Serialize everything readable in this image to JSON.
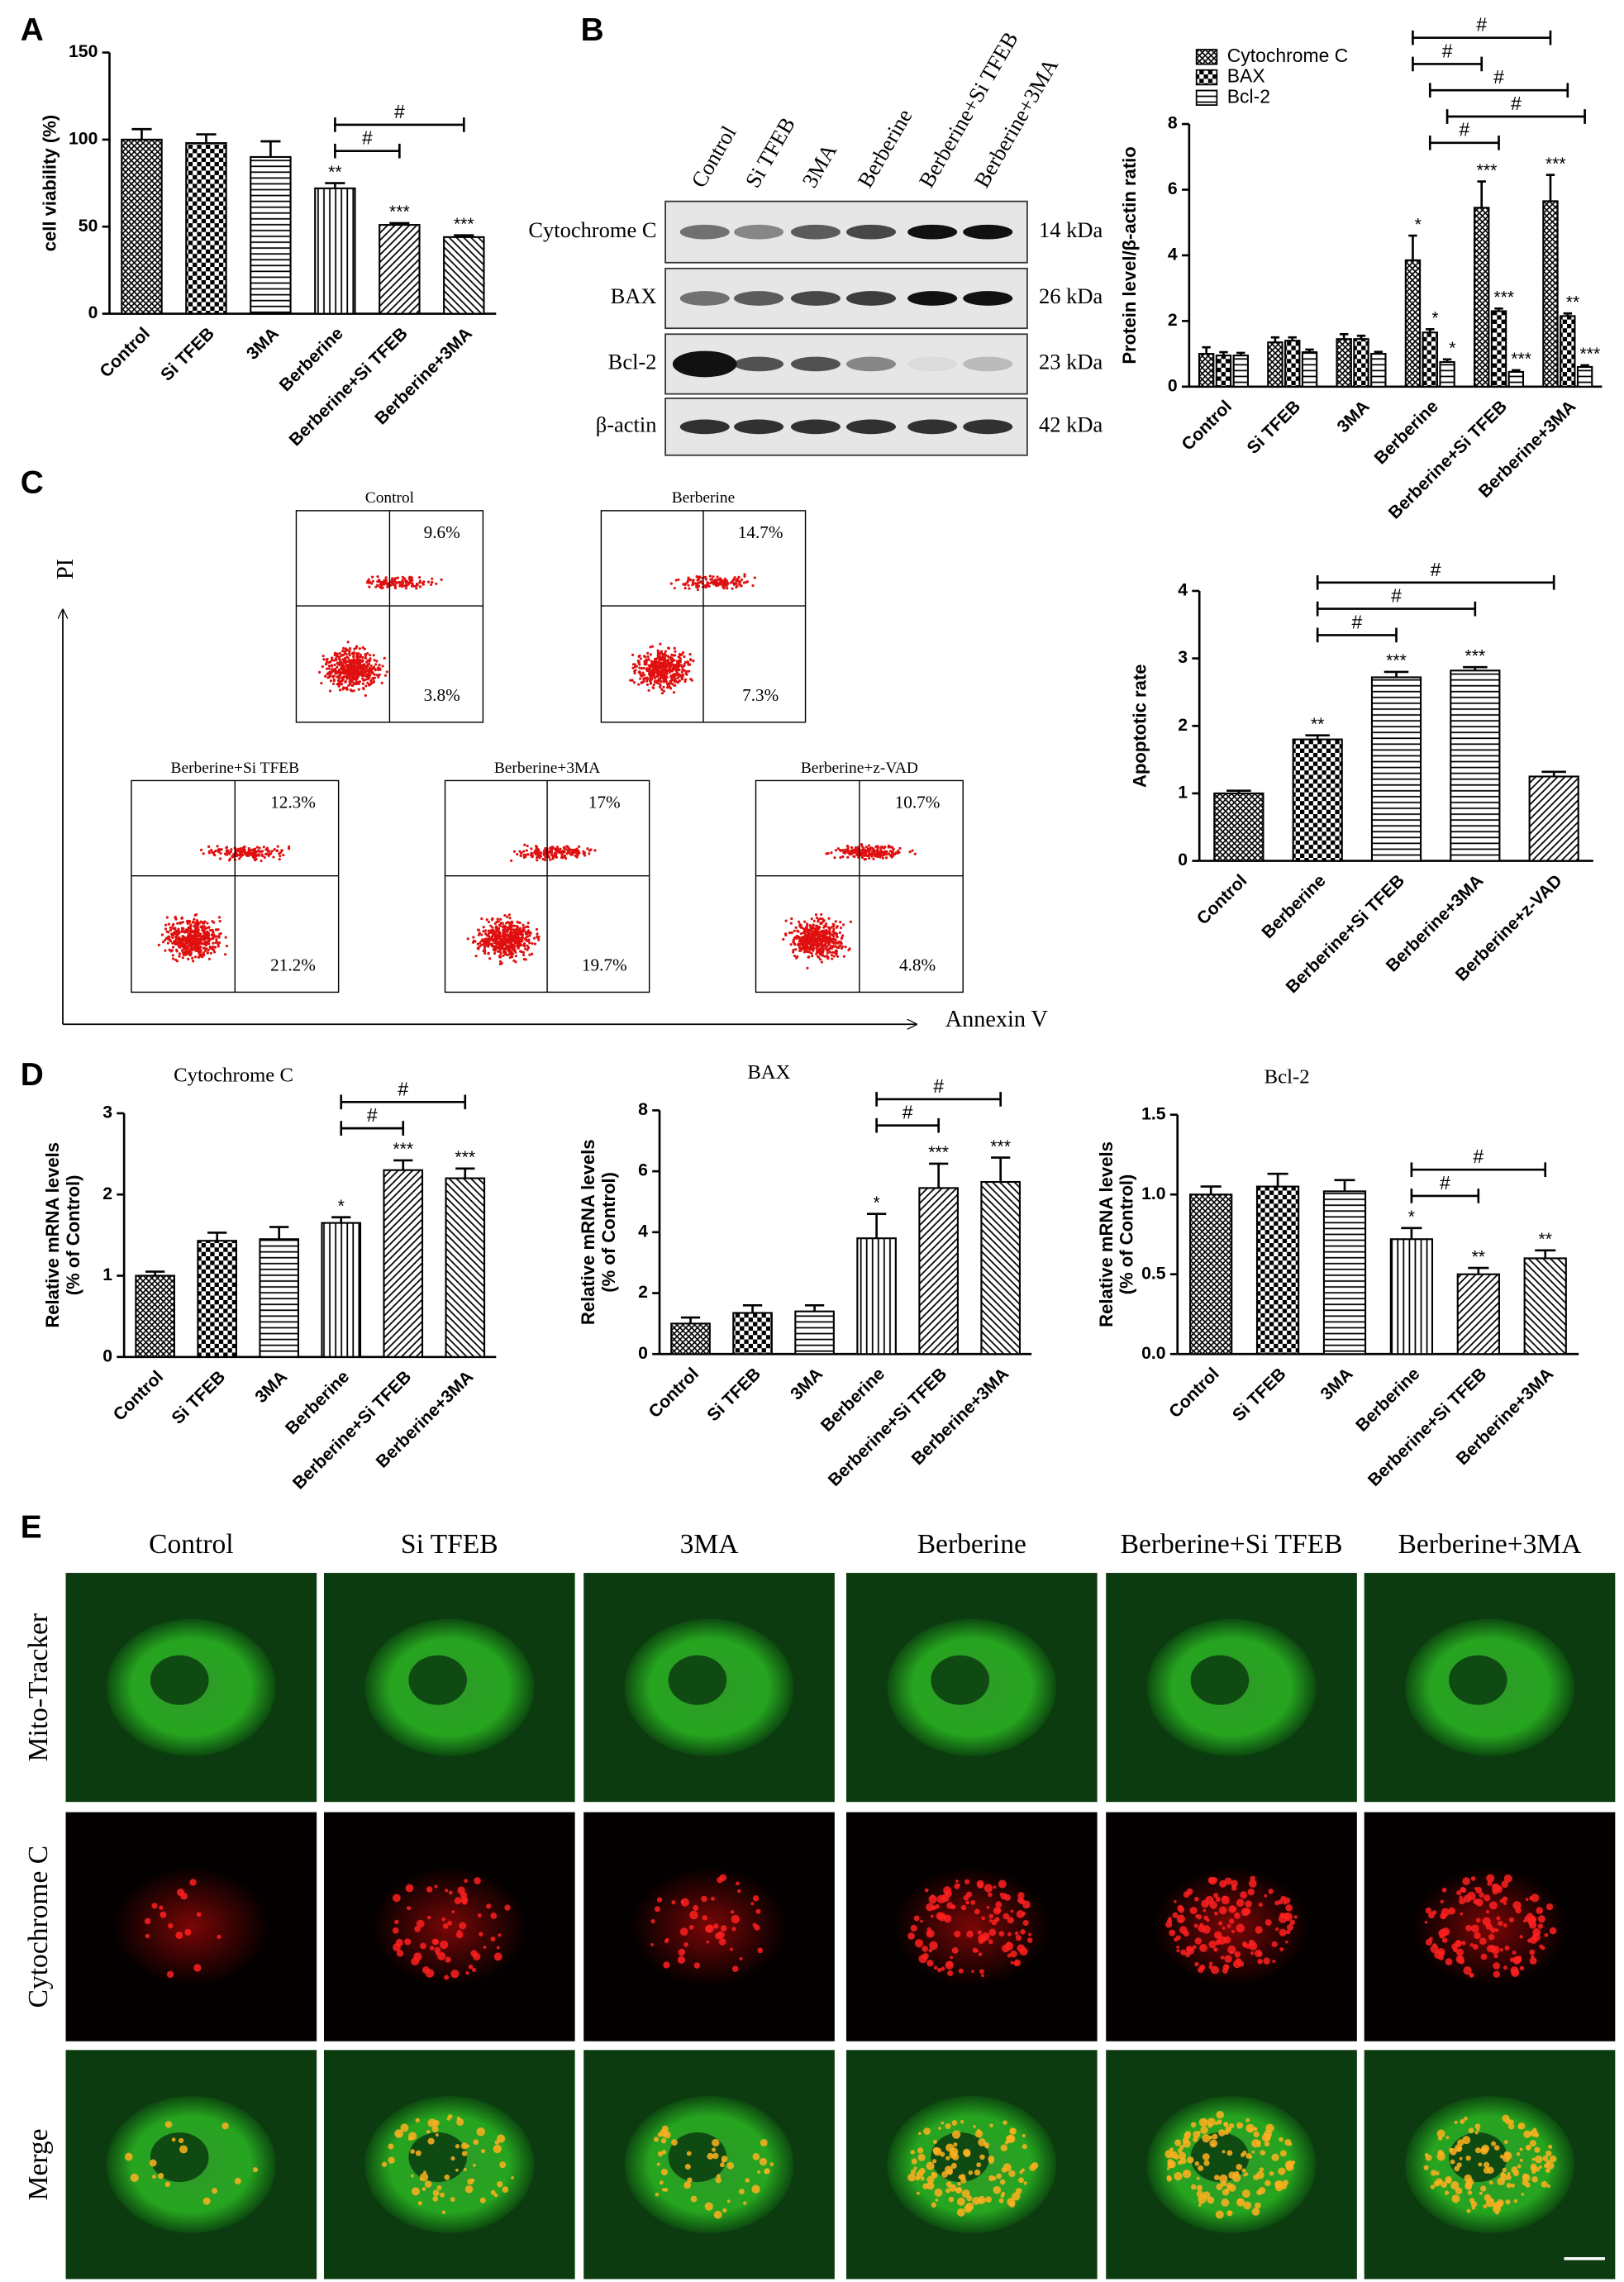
{
  "panel_labels": [
    "A",
    "B",
    "C",
    "D",
    "E"
  ],
  "chart_data": [
    {
      "type": "bar",
      "ylabel": [
        "cell viability (%)"
      ],
      "categories": [
        "Control",
        "Si TFEB",
        "3MA",
        "Berberine",
        "Berberine+Si TFEB",
        "Berberine+3MA"
      ],
      "values": [
        100,
        98,
        90,
        72,
        51,
        44
      ],
      "errors": [
        6,
        5,
        9,
        3,
        1,
        1
      ],
      "ylim": [
        0,
        150
      ],
      "yticks": [
        0,
        50,
        100,
        150
      ],
      "patterns": [
        "crosshatch",
        "checker",
        "hlines",
        "vlines",
        "diag",
        "diagb"
      ],
      "annotations": [
        {
          "label": "**",
          "category": "Berberine"
        },
        {
          "label": "***",
          "category": "Berberine+Si TFEB"
        },
        {
          "label": "***",
          "category": "Berberine+3MA"
        }
      ],
      "brackets": [
        {
          "label": "#",
          "from": "Berberine",
          "to": "Berberine+Si TFEB"
        },
        {
          "label": "#",
          "from": "Berberine",
          "to": "Berberine+3MA"
        }
      ]
    },
    {
      "type": "bar",
      "ylabel": [
        "Protein level/β-actin ratio"
      ],
      "categories": [
        "Control",
        "Si TFEB",
        "3MA",
        "Berberine",
        "Berberine+Si TFEB",
        "Berberine+3MA"
      ],
      "legend": "top left",
      "series": [
        {
          "name": "Cytochrome C",
          "values": [
            1.0,
            1.35,
            1.45,
            3.85,
            5.45,
            5.65
          ],
          "errors": [
            0.2,
            0.15,
            0.15,
            0.75,
            0.8,
            0.8
          ]
        },
        {
          "name": "BAX",
          "values": [
            0.95,
            1.4,
            1.45,
            1.65,
            2.3,
            2.15
          ],
          "errors": [
            0.1,
            0.1,
            0.1,
            0.1,
            0.08,
            0.08
          ]
        },
        {
          "name": "Bcl-2",
          "values": [
            0.95,
            1.05,
            1.0,
            0.75,
            0.45,
            0.6
          ],
          "errors": [
            0.08,
            0.08,
            0.06,
            0.08,
            0.05,
            0.05
          ]
        }
      ],
      "ylim": [
        0,
        8
      ],
      "yticks": [
        0,
        2,
        4,
        6,
        8
      ],
      "patterns": [
        "crosshatch",
        "checker",
        "hlines"
      ],
      "annotations": [
        {
          "label": "*",
          "series": "Cytochrome C",
          "category": "Berberine"
        },
        {
          "label": "***",
          "series": "Cytochrome C",
          "category": "Berberine+Si TFEB"
        },
        {
          "label": "***",
          "series": "Cytochrome C",
          "category": "Berberine+3MA"
        },
        {
          "label": "*",
          "series": "BAX",
          "category": "Berberine"
        },
        {
          "label": "***",
          "series": "BAX",
          "category": "Berberine+Si TFEB"
        },
        {
          "label": "**",
          "series": "BAX",
          "category": "Berberine+3MA"
        },
        {
          "label": "*",
          "series": "Bcl-2",
          "category": "Berberine"
        },
        {
          "label": "***",
          "series": "Bcl-2",
          "category": "Berberine+Si TFEB"
        },
        {
          "label": "***",
          "series": "Bcl-2",
          "category": "Berberine+3MA"
        }
      ],
      "brackets": [
        {
          "label": "#",
          "series": "BAX",
          "from": "Berberine",
          "to": "Berberine+Si TFEB"
        },
        {
          "label": "#",
          "series": "Bcl-2",
          "from": "Berberine",
          "to": "Berberine+3MA"
        },
        {
          "label": "#",
          "series": "BAX",
          "from": "Berberine",
          "to": "Berberine+3MA"
        },
        {
          "label": "#",
          "series": "Cytochrome C",
          "from": "Berberine",
          "to": "Berberine+Si TFEB"
        },
        {
          "label": "#",
          "series": "Cytochrome C",
          "from": "Berberine",
          "to": "Berberine+3MA"
        }
      ]
    },
    {
      "type": "bar",
      "ylabel": [
        "Apoptotic rate"
      ],
      "categories": [
        "Control",
        "Berberine",
        "Berberine+Si TFEB",
        "Berberine+3MA",
        "Berberine+z-VAD"
      ],
      "values": [
        1.0,
        1.8,
        2.72,
        2.82,
        1.25
      ],
      "errors": [
        0.04,
        0.06,
        0.08,
        0.05,
        0.07
      ],
      "ylim": [
        0,
        4
      ],
      "yticks": [
        0,
        1,
        2,
        3,
        4
      ],
      "patterns": [
        "crosshatch",
        "checker",
        "hlines",
        "hlines",
        "diag"
      ],
      "annotations": [
        {
          "label": "**",
          "category": "Berberine"
        },
        {
          "label": "***",
          "category": "Berberine+Si TFEB"
        },
        {
          "label": "***",
          "category": "Berberine+3MA"
        }
      ],
      "brackets": [
        {
          "label": "#",
          "from": "Berberine",
          "to": "Berberine+Si TFEB"
        },
        {
          "label": "#",
          "from": "Berberine",
          "to": "Berberine+3MA"
        },
        {
          "label": "#",
          "from": "Berberine",
          "to": "Berberine+z-VAD"
        }
      ]
    },
    {
      "type": "bar",
      "title": "Cytochrome C",
      "ylabel": [
        "Relative mRNA levels",
        "(% of Control)"
      ],
      "categories": [
        "Control",
        "Si TFEB",
        "3MA",
        "Berberine",
        "Berberine+Si TFEB",
        "Berberine+3MA"
      ],
      "values": [
        1.0,
        1.43,
        1.45,
        1.65,
        2.3,
        2.2
      ],
      "errors": [
        0.05,
        0.1,
        0.15,
        0.07,
        0.12,
        0.12
      ],
      "ylim": [
        0,
        3
      ],
      "yticks": [
        0,
        1,
        2,
        3
      ],
      "patterns": [
        "crosshatch",
        "checker",
        "hlines",
        "vlines",
        "diag",
        "diagb"
      ],
      "annotations": [
        {
          "label": "*",
          "category": "Berberine"
        },
        {
          "label": "***",
          "category": "Berberine+Si TFEB"
        },
        {
          "label": "***",
          "category": "Berberine+3MA"
        }
      ],
      "brackets": [
        {
          "label": "#",
          "from": "Berberine",
          "to": "Berberine+Si TFEB"
        },
        {
          "label": "#",
          "from": "Berberine",
          "to": "Berberine+3MA"
        }
      ]
    },
    {
      "type": "bar",
      "title": "BAX",
      "ylabel": [
        "Relative mRNA levels",
        "(% of Control)"
      ],
      "categories": [
        "Control",
        "Si TFEB",
        "3MA",
        "Berberine",
        "Berberine+Si TFEB",
        "Berberine+3MA"
      ],
      "values": [
        1.0,
        1.35,
        1.4,
        3.8,
        5.45,
        5.65
      ],
      "errors": [
        0.2,
        0.25,
        0.2,
        0.8,
        0.8,
        0.8
      ],
      "ylim": [
        0,
        8
      ],
      "yticks": [
        0,
        2,
        4,
        6,
        8
      ],
      "patterns": [
        "crosshatch",
        "checker",
        "hlines",
        "vlines",
        "diag",
        "diagb"
      ],
      "annotations": [
        {
          "label": "*",
          "category": "Berberine"
        },
        {
          "label": "***",
          "category": "Berberine+Si TFEB"
        },
        {
          "label": "***",
          "category": "Berberine+3MA"
        }
      ],
      "brackets": [
        {
          "label": "#",
          "from": "Berberine",
          "to": "Berberine+Si TFEB"
        },
        {
          "label": "#",
          "from": "Berberine",
          "to": "Berberine+3MA"
        }
      ]
    },
    {
      "type": "bar",
      "title": "Bcl-2",
      "ylabel": [
        "Relative mRNA levels",
        "(% of Control)"
      ],
      "categories": [
        "Control",
        "Si TFEB",
        "3MA",
        "Berberine",
        "Berberine+Si TFEB",
        "Berberine+3MA"
      ],
      "values": [
        1.0,
        1.05,
        1.02,
        0.72,
        0.5,
        0.6
      ],
      "errors": [
        0.05,
        0.08,
        0.07,
        0.07,
        0.04,
        0.05
      ],
      "ylim": [
        0,
        1.5
      ],
      "yticks": [
        {
          "value": 0,
          "label": "0.0"
        },
        0.5,
        {
          "value": 1,
          "label": "1.0"
        },
        1.5
      ],
      "patterns": [
        "crosshatch",
        "checker",
        "hlines",
        "vlines",
        "diag",
        "diagb"
      ],
      "annotations": [
        {
          "label": "*",
          "category": "Berberine"
        },
        {
          "label": "**",
          "category": "Berberine+Si TFEB"
        },
        {
          "label": "**",
          "category": "Berberine+3MA"
        }
      ],
      "brackets": [
        {
          "label": "#",
          "from": "Berberine",
          "to": "Berberine+Si TFEB"
        },
        {
          "label": "#",
          "from": "Berberine",
          "to": "Berberine+3MA"
        }
      ]
    }
  ],
  "blot": {
    "lanes": [
      "Control",
      "Si TFEB",
      "3MA",
      "Berberine",
      "Berberine+Si TFEB",
      "Berberine+3MA"
    ],
    "rows": [
      {
        "name": "Cytochrome C",
        "size": "14 kDa"
      },
      {
        "name": "BAX",
        "size": "26 kDa"
      },
      {
        "name": "Bcl-2",
        "size": "23 kDa"
      },
      {
        "name": "β-actin",
        "size": "42 kDa"
      }
    ]
  },
  "flow": {
    "y_axis": "PI",
    "x_axis": "Annexin V",
    "panels": [
      {
        "title": "Control",
        "upper_right": "9.6%",
        "lower_right": "3.8%"
      },
      {
        "title": "Berberine",
        "upper_right": "14.7%",
        "lower_right": "7.3%"
      },
      {
        "title": "Berberine+Si TFEB",
        "upper_right": "12.3%",
        "lower_right": "21.2%"
      },
      {
        "title": "Berberine+3MA",
        "upper_right": "17%",
        "lower_right": "19.7%"
      },
      {
        "title": "Berberine+z-VAD",
        "upper_right": "10.7%",
        "lower_right": "4.8%"
      }
    ]
  },
  "imaging": {
    "columns": [
      "Control",
      "Si TFEB",
      "3MA",
      "Berberine",
      "Berberine+Si TFEB",
      "Berberine+3MA"
    ],
    "rows": [
      "Mito-Tracker",
      "Cytochrome C",
      "Merge"
    ]
  }
}
